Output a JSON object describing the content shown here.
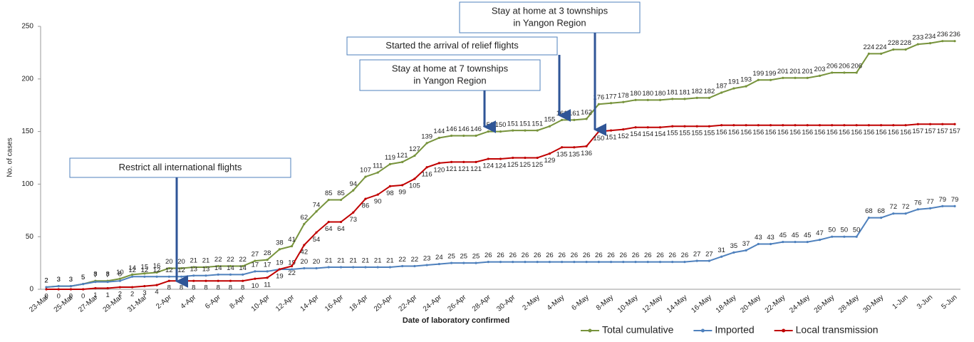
{
  "chart_data": {
    "type": "line",
    "y_label": "No. of cases",
    "x_label": "Date of laboratory confirmed",
    "categories": [
      "23-Mar",
      null,
      "25-Mar",
      null,
      "27-Mar",
      null,
      "29-Mar",
      null,
      "31-Mar",
      null,
      "2-Apr",
      null,
      "4-Apr",
      null,
      "6-Apr",
      null,
      "8-Apr",
      null,
      "10-Apr",
      null,
      "12-Apr",
      null,
      "14-Apr",
      null,
      "16-Apr",
      null,
      "18-Apr",
      null,
      "20-Apr",
      null,
      "22-Apr",
      null,
      "24-Apr",
      null,
      "26-Apr",
      null,
      "28-Apr",
      null,
      "30-Apr",
      null,
      "2-May",
      null,
      "4-May",
      null,
      "6-May",
      null,
      "8-May",
      null,
      "10-May",
      null,
      "12-May",
      null,
      "14-May",
      null,
      "16-May",
      null,
      "18-May",
      null,
      "20-May",
      null,
      "22-May",
      null,
      "24-May",
      null,
      "26-May",
      null,
      "28-May",
      null,
      "30-May",
      null,
      "1-Jun",
      null,
      "3-Jun",
      null,
      "5-Jun"
    ],
    "series": [
      {
        "name": "Total cumulative",
        "color": "#77933c",
        "values": [
          2,
          3,
          3,
          5,
          8,
          8,
          10,
          14,
          15,
          16,
          20,
          20,
          21,
          21,
          22,
          22,
          22,
          27,
          28,
          38,
          41,
          62,
          74,
          85,
          85,
          94,
          107,
          111,
          119,
          121,
          127,
          139,
          144,
          146,
          146,
          146,
          150,
          150,
          151,
          151,
          151,
          155,
          161,
          161,
          162,
          176,
          177,
          178,
          180,
          180,
          180,
          181,
          181,
          182,
          182,
          187,
          191,
          193,
          199,
          199,
          201,
          201,
          201,
          203,
          206,
          206,
          206,
          224,
          224,
          228,
          228,
          233,
          234,
          236,
          236
        ]
      },
      {
        "name": "Imported",
        "color": "#4f81bd",
        "values": [
          2,
          3,
          3,
          5,
          7,
          7,
          8,
          12,
          12,
          12,
          12,
          12,
          13,
          13,
          14,
          14,
          14,
          17,
          17,
          19,
          19,
          20,
          20,
          21,
          21,
          21,
          21,
          21,
          21,
          22,
          22,
          23,
          24,
          25,
          25,
          25,
          26,
          26,
          26,
          26,
          26,
          26,
          26,
          26,
          26,
          26,
          26,
          26,
          26,
          26,
          26,
          26,
          26,
          27,
          27,
          31,
          35,
          37,
          43,
          43,
          45,
          45,
          45,
          47,
          50,
          50,
          50,
          68,
          68,
          72,
          72,
          76,
          77,
          79,
          79
        ]
      },
      {
        "name": "Local transmission",
        "color": "#c00000",
        "values": [
          0,
          0,
          0,
          0,
          1,
          1,
          2,
          2,
          3,
          4,
          8,
          8,
          8,
          8,
          8,
          8,
          8,
          10,
          11,
          19,
          22,
          42,
          54,
          64,
          64,
          73,
          86,
          90,
          98,
          99,
          105,
          116,
          120,
          121,
          121,
          121,
          124,
          124,
          125,
          125,
          125,
          129,
          135,
          135,
          136,
          150,
          151,
          152,
          154,
          154,
          154,
          155,
          155,
          155,
          155,
          156,
          156,
          156,
          156,
          156,
          156,
          156,
          156,
          156,
          156,
          156,
          156,
          156,
          156,
          156,
          156,
          157,
          157,
          157,
          157
        ]
      }
    ],
    "ylim": [
      0,
      250
    ],
    "yticks": [
      0,
      50,
      100,
      150,
      200,
      250
    ],
    "grid": false,
    "legend": "bottom right",
    "annotations": [
      {
        "lines": [
          "Restrict all international flights"
        ]
      },
      {
        "lines": [
          "Stay at home at 7 townships",
          "in Yangon Region"
        ]
      },
      {
        "lines": [
          "Started the arrival of relief flights"
        ]
      },
      {
        "lines": [
          "Stay at home at 3 townships",
          "in Yangon Region"
        ]
      }
    ]
  }
}
